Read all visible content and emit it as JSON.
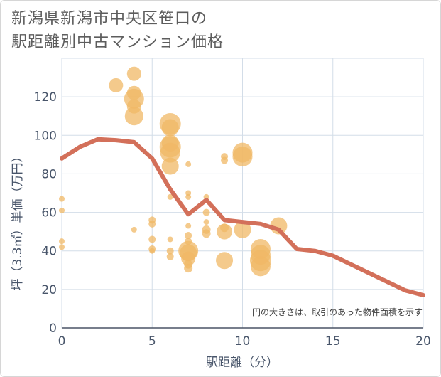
{
  "title": "新潟県新潟市中央区笹口の\n駅距離別中古マンション価格",
  "chart_data": {
    "type": "scatter",
    "xlabel": "駅距離（分）",
    "ylabel": "坪（3.3㎡）単価（万円）",
    "xlim": [
      0,
      20
    ],
    "ylim": [
      0,
      140
    ],
    "xticks": [
      0,
      5,
      10,
      15,
      20
    ],
    "yticks": [
      0,
      20,
      40,
      60,
      80,
      100,
      120
    ],
    "note": "円の大きさは、取引のあった物件面積を示す",
    "colors": {
      "bubble": "#f0b865",
      "line": "#d3705a",
      "grid": "#d3dde8"
    },
    "bubbles": [
      {
        "x": 0,
        "y": 67,
        "r": 4
      },
      {
        "x": 0,
        "y": 61,
        "r": 4
      },
      {
        "x": 0,
        "y": 45,
        "r": 4
      },
      {
        "x": 0,
        "y": 42,
        "r": 4
      },
      {
        "x": 3,
        "y": 126,
        "r": 10
      },
      {
        "x": 4,
        "y": 132,
        "r": 10
      },
      {
        "x": 4,
        "y": 122,
        "r": 10
      },
      {
        "x": 4,
        "y": 119,
        "r": 14
      },
      {
        "x": 4,
        "y": 115,
        "r": 10
      },
      {
        "x": 4,
        "y": 110,
        "r": 13
      },
      {
        "x": 4,
        "y": 51,
        "r": 4
      },
      {
        "x": 5,
        "y": 56,
        "r": 5
      },
      {
        "x": 5,
        "y": 54,
        "r": 5
      },
      {
        "x": 5,
        "y": 46,
        "r": 5
      },
      {
        "x": 5,
        "y": 41,
        "r": 5
      },
      {
        "x": 5,
        "y": 40,
        "r": 4
      },
      {
        "x": 6,
        "y": 106,
        "r": 15
      },
      {
        "x": 6,
        "y": 104,
        "r": 12
      },
      {
        "x": 6,
        "y": 96,
        "r": 12
      },
      {
        "x": 6,
        "y": 94,
        "r": 15
      },
      {
        "x": 6,
        "y": 91,
        "r": 14
      },
      {
        "x": 6,
        "y": 84,
        "r": 12
      },
      {
        "x": 6,
        "y": 68,
        "r": 4
      },
      {
        "x": 6,
        "y": 46,
        "r": 4
      },
      {
        "x": 6,
        "y": 40,
        "r": 5
      },
      {
        "x": 6,
        "y": 37,
        "r": 5
      },
      {
        "x": 7,
        "y": 85,
        "r": 4
      },
      {
        "x": 7,
        "y": 70,
        "r": 4
      },
      {
        "x": 7,
        "y": 68,
        "r": 4
      },
      {
        "x": 7,
        "y": 53,
        "r": 4
      },
      {
        "x": 7,
        "y": 48,
        "r": 5
      },
      {
        "x": 7,
        "y": 45,
        "r": 5
      },
      {
        "x": 7,
        "y": 40,
        "r": 14
      },
      {
        "x": 7,
        "y": 39,
        "r": 12
      },
      {
        "x": 7,
        "y": 36,
        "r": 10
      },
      {
        "x": 7,
        "y": 33,
        "r": 6
      },
      {
        "x": 7,
        "y": 31,
        "r": 6
      },
      {
        "x": 8,
        "y": 68,
        "r": 4
      },
      {
        "x": 8,
        "y": 60,
        "r": 5
      },
      {
        "x": 8,
        "y": 55,
        "r": 4
      },
      {
        "x": 8,
        "y": 51,
        "r": 6
      },
      {
        "x": 8,
        "y": 49,
        "r": 6
      },
      {
        "x": 9,
        "y": 89,
        "r": 5
      },
      {
        "x": 9,
        "y": 87,
        "r": 5
      },
      {
        "x": 9,
        "y": 52,
        "r": 6
      },
      {
        "x": 9,
        "y": 50,
        "r": 11
      },
      {
        "x": 9,
        "y": 35,
        "r": 12
      },
      {
        "x": 10,
        "y": 91,
        "r": 14
      },
      {
        "x": 10,
        "y": 89,
        "r": 14
      },
      {
        "x": 10,
        "y": 51,
        "r": 12
      },
      {
        "x": 11,
        "y": 41,
        "r": 14
      },
      {
        "x": 11,
        "y": 38,
        "r": 14
      },
      {
        "x": 11,
        "y": 35,
        "r": 15
      },
      {
        "x": 11,
        "y": 32,
        "r": 14
      },
      {
        "x": 12,
        "y": 53,
        "r": 12
      }
    ],
    "series": [
      {
        "type": "line",
        "x": [
          0,
          1,
          2,
          3,
          4,
          5,
          6,
          7,
          8,
          9,
          10,
          11,
          12,
          13,
          14,
          15,
          16,
          17,
          18,
          19,
          20
        ],
        "values": [
          88,
          94,
          98,
          97.5,
          96.5,
          88,
          72,
          59,
          66.5,
          56,
          55,
          54,
          51,
          41,
          40,
          37.5,
          33,
          28.5,
          24,
          19.5,
          17
        ]
      }
    ]
  }
}
